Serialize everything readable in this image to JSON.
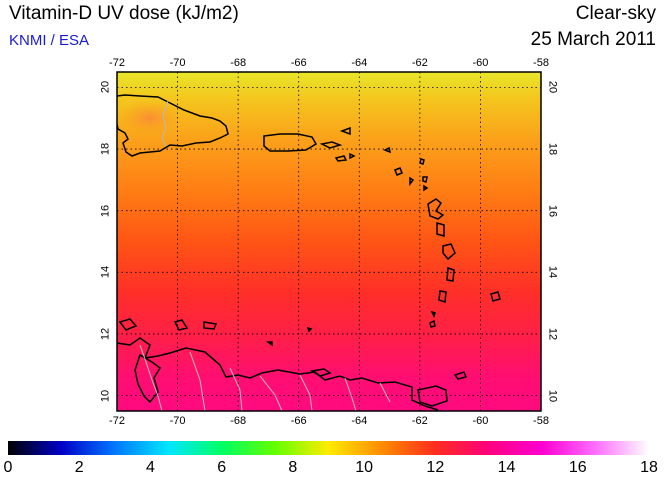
{
  "header": {
    "title": "Vitamin-D UV dose (kJ/m2)",
    "source": "KNMI / ESA",
    "condition": "Clear-sky",
    "date": "25 March 2011"
  },
  "map": {
    "lon_range": [
      -72,
      -58
    ],
    "lat_range": [
      9.5,
      20.5
    ],
    "lon_ticks": [
      "-72",
      "-70",
      "-68",
      "-66",
      "-64",
      "-62",
      "-60",
      "-58"
    ],
    "lat_ticks": [
      "10",
      "12",
      "14",
      "16",
      "18",
      "20"
    ],
    "graticule": "dotted",
    "coastline_color": "#000000",
    "border_color": "#bbbbbb"
  },
  "colorbar": {
    "labels": [
      "0",
      "2",
      "4",
      "6",
      "8",
      "10",
      "12",
      "14",
      "16",
      "18"
    ],
    "colors": [
      "#000000",
      "#0000c8",
      "#0078ff",
      "#00e6ff",
      "#00ff64",
      "#64ff00",
      "#ffeb00",
      "#ff8c00",
      "#ff2d1e",
      "#ff007e",
      "#ff00d2",
      "#ff6eff",
      "#ffffff"
    ]
  }
}
